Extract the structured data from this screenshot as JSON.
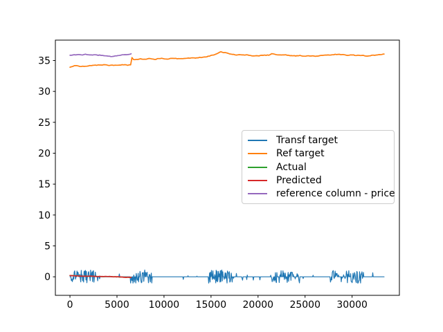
{
  "chart_data": {
    "type": "line",
    "title": "",
    "xlabel": "",
    "ylabel": "",
    "grid": false,
    "xlim": [
      -1550,
      35030
    ],
    "ylim": [
      -3.0,
      38.3
    ],
    "x_ticks": [
      0,
      5000,
      10000,
      15000,
      20000,
      25000,
      30000
    ],
    "y_ticks": [
      0,
      5,
      10,
      15,
      20,
      25,
      30,
      35
    ],
    "legend": {
      "position": "center-right",
      "entries": [
        {
          "label": "Transf target",
          "color": "#1f77b4"
        },
        {
          "label": "Ref target",
          "color": "#ff7f0e"
        },
        {
          "label": "Actual",
          "color": "#2ca02c"
        },
        {
          "label": "Predicted",
          "color": "#d62728"
        },
        {
          "label": "reference column - price",
          "color": "#9467bd"
        }
      ]
    },
    "series": [
      {
        "name": "Transf target",
        "color": "#1f77b4",
        "kind": "noise",
        "baseline": 0,
        "x_range": [
          0,
          33400
        ],
        "clusters": [
          [
            150,
            2700,
            1.1,
            0.7,
            0
          ],
          [
            2900,
            3600,
            0.85,
            0.14,
            0
          ],
          [
            4100,
            4700,
            0.8,
            0.12,
            0
          ],
          [
            4900,
            5600,
            0.7,
            0.1,
            0
          ],
          [
            6400,
            8700,
            1.15,
            0.72,
            0
          ],
          [
            8900,
            9900,
            0.9,
            0.16,
            0
          ],
          [
            10300,
            11200,
            0.8,
            0.14,
            0
          ],
          [
            11600,
            12300,
            0.7,
            0.12,
            0
          ],
          [
            12500,
            12700,
            0.5,
            0.12,
            0
          ],
          [
            13400,
            13600,
            0.5,
            0.12,
            0
          ],
          [
            14700,
            17400,
            1.1,
            0.7,
            0
          ],
          [
            17700,
            19200,
            0.9,
            0.2,
            0
          ],
          [
            19500,
            20900,
            0.7,
            0.1,
            0
          ],
          [
            21300,
            24400,
            1.0,
            0.6,
            0
          ],
          [
            24600,
            25900,
            0.75,
            0.1,
            0
          ],
          [
            27700,
            31100,
            1.05,
            0.65,
            0
          ],
          [
            31200,
            32400,
            0.9,
            0.2,
            1
          ]
        ]
      },
      {
        "name": "Ref target",
        "color": "#ff7f0e",
        "kind": "keypoints",
        "jitter": 0.05,
        "points": [
          [
            0,
            33.9
          ],
          [
            300,
            34.05
          ],
          [
            700,
            34.25
          ],
          [
            900,
            34.1
          ],
          [
            1300,
            34.05
          ],
          [
            1700,
            34.1
          ],
          [
            2100,
            34.15
          ],
          [
            2500,
            34.2
          ],
          [
            2900,
            34.25
          ],
          [
            3300,
            34.3
          ],
          [
            3700,
            34.3
          ],
          [
            4100,
            34.2
          ],
          [
            4500,
            34.25
          ],
          [
            4900,
            34.2
          ],
          [
            5300,
            34.25
          ],
          [
            5700,
            34.3
          ],
          [
            6100,
            34.25
          ],
          [
            6400,
            34.3
          ],
          [
            6500,
            34.25
          ],
          [
            6560,
            35.55
          ],
          [
            6700,
            35.2
          ],
          [
            7100,
            35.15
          ],
          [
            7500,
            35.25
          ],
          [
            7900,
            35.2
          ],
          [
            8300,
            35.3
          ],
          [
            8700,
            35.25
          ],
          [
            9100,
            35.2
          ],
          [
            9500,
            35.35
          ],
          [
            9900,
            35.3
          ],
          [
            10300,
            35.25
          ],
          [
            10700,
            35.3
          ],
          [
            11100,
            35.35
          ],
          [
            11500,
            35.3
          ],
          [
            11900,
            35.3
          ],
          [
            12300,
            35.35
          ],
          [
            12700,
            35.4
          ],
          [
            13100,
            35.4
          ],
          [
            13500,
            35.45
          ],
          [
            13900,
            35.5
          ],
          [
            14300,
            35.55
          ],
          [
            14700,
            35.7
          ],
          [
            15100,
            35.85
          ],
          [
            15500,
            36.0
          ],
          [
            15900,
            36.3
          ],
          [
            16100,
            36.4
          ],
          [
            16400,
            36.3
          ],
          [
            16700,
            36.2
          ],
          [
            17000,
            36.1
          ],
          [
            17300,
            36.0
          ],
          [
            17600,
            35.9
          ],
          [
            17900,
            35.95
          ],
          [
            18200,
            35.9
          ],
          [
            18500,
            35.85
          ],
          [
            18800,
            35.9
          ],
          [
            19100,
            35.8
          ],
          [
            19400,
            35.75
          ],
          [
            19700,
            35.8
          ],
          [
            20000,
            35.75
          ],
          [
            20400,
            35.8
          ],
          [
            20800,
            35.85
          ],
          [
            21200,
            35.9
          ],
          [
            21500,
            36.15
          ],
          [
            21700,
            36.0
          ],
          [
            22000,
            35.9
          ],
          [
            22400,
            35.85
          ],
          [
            22800,
            35.9
          ],
          [
            23200,
            35.85
          ],
          [
            23600,
            35.8
          ],
          [
            24000,
            35.75
          ],
          [
            24400,
            35.8
          ],
          [
            24800,
            35.75
          ],
          [
            25200,
            35.7
          ],
          [
            25600,
            35.75
          ],
          [
            26000,
            35.7
          ],
          [
            26400,
            35.75
          ],
          [
            26800,
            35.8
          ],
          [
            27200,
            35.85
          ],
          [
            27600,
            35.9
          ],
          [
            28000,
            35.95
          ],
          [
            28400,
            36.0
          ],
          [
            28800,
            35.95
          ],
          [
            29200,
            35.9
          ],
          [
            29600,
            35.85
          ],
          [
            30000,
            35.9
          ],
          [
            30400,
            35.85
          ],
          [
            30800,
            35.85
          ],
          [
            31200,
            35.8
          ],
          [
            31600,
            35.75
          ],
          [
            32000,
            35.8
          ],
          [
            32400,
            35.85
          ],
          [
            32800,
            35.95
          ],
          [
            33200,
            36.0
          ],
          [
            33400,
            36.05
          ]
        ]
      },
      {
        "name": "Actual",
        "color": "#2ca02c",
        "kind": "keypoints",
        "jitter": 0.02,
        "points": [
          [
            0,
            0.2
          ],
          [
            800,
            0.15
          ],
          [
            1600,
            0.1
          ],
          [
            2400,
            0.1
          ],
          [
            3200,
            0.05
          ],
          [
            4000,
            0.05
          ],
          [
            4800,
            0.0
          ],
          [
            5600,
            -0.05
          ],
          [
            6400,
            -0.1
          ],
          [
            6500,
            -0.1
          ]
        ]
      },
      {
        "name": "Predicted",
        "color": "#d62728",
        "kind": "keypoints",
        "jitter": 0.03,
        "points": [
          [
            0,
            0.2
          ],
          [
            800,
            0.15
          ],
          [
            1600,
            0.1
          ],
          [
            2400,
            0.1
          ],
          [
            3200,
            0.05
          ],
          [
            4000,
            0.05
          ],
          [
            4800,
            0.0
          ],
          [
            5600,
            -0.05
          ],
          [
            6400,
            -0.1
          ],
          [
            6500,
            -0.1
          ]
        ]
      },
      {
        "name": "reference column - price",
        "color": "#9467bd",
        "kind": "keypoints",
        "jitter": 0.04,
        "points": [
          [
            0,
            35.85
          ],
          [
            400,
            35.9
          ],
          [
            800,
            35.95
          ],
          [
            1200,
            35.9
          ],
          [
            1600,
            36.0
          ],
          [
            2000,
            35.95
          ],
          [
            2400,
            35.9
          ],
          [
            2800,
            35.9
          ],
          [
            3200,
            35.85
          ],
          [
            3600,
            35.8
          ],
          [
            4000,
            35.7
          ],
          [
            4400,
            35.65
          ],
          [
            4800,
            35.75
          ],
          [
            5200,
            35.8
          ],
          [
            5600,
            35.9
          ],
          [
            6000,
            35.95
          ],
          [
            6400,
            36.05
          ],
          [
            6500,
            36.1
          ]
        ]
      }
    ]
  }
}
